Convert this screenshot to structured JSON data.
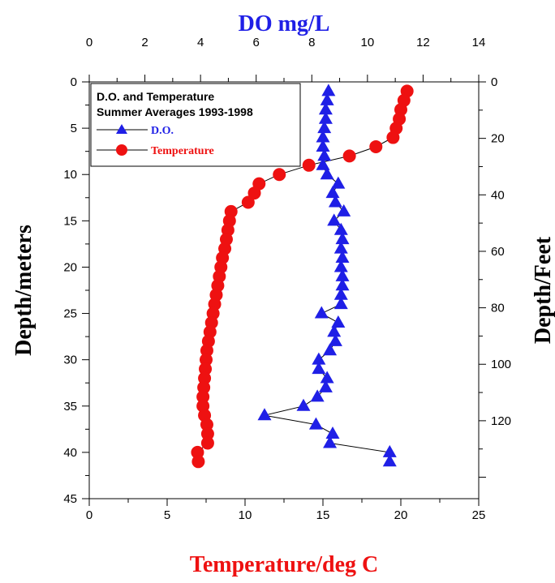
{
  "chart_data": {
    "type": "scatter",
    "title": "",
    "top_axis": {
      "label": "DO mg/L",
      "range": [
        0,
        14
      ],
      "ticks": [
        "0",
        "2",
        "4",
        "6",
        "8",
        "10",
        "12",
        "14"
      ],
      "color": "#1f1fe6"
    },
    "bottom_axis": {
      "label": "Temperature/deg C",
      "range": [
        0,
        25
      ],
      "ticks": [
        "0",
        "5",
        "10",
        "15",
        "20",
        "25"
      ],
      "color": "#ee1111"
    },
    "left_axis": {
      "label": "Depth/meters",
      "range": [
        0,
        45
      ],
      "inverted": true,
      "ticks": [
        "0",
        "5",
        "10",
        "15",
        "20",
        "25",
        "30",
        "35",
        "40",
        "45"
      ]
    },
    "right_axis": {
      "label": "Depth/Feet",
      "range": [
        0,
        147.6
      ],
      "inverted": true,
      "ticks": [
        "0",
        "20",
        "40",
        "60",
        "80",
        "100",
        "120"
      ]
    },
    "legend": {
      "placement": "top-left",
      "title_line1": "D.O. and Temperature",
      "title_line2": "Summer Averages 1993-1998",
      "do_label": "D.O.",
      "temp_label": "Temperature"
    },
    "series": [
      {
        "name": "D.O.",
        "color": "#1f1fe6",
        "marker": "triangle",
        "x_axis": "top",
        "points": [
          {
            "depth": 1,
            "value": 8.6
          },
          {
            "depth": 2,
            "value": 8.55
          },
          {
            "depth": 3,
            "value": 8.5
          },
          {
            "depth": 4,
            "value": 8.5
          },
          {
            "depth": 5,
            "value": 8.45
          },
          {
            "depth": 6,
            "value": 8.4
          },
          {
            "depth": 7,
            "value": 8.4
          },
          {
            "depth": 8,
            "value": 8.45
          },
          {
            "depth": 9,
            "value": 8.4
          },
          {
            "depth": 10,
            "value": 8.55
          },
          {
            "depth": 11,
            "value": 8.95
          },
          {
            "depth": 12,
            "value": 8.75
          },
          {
            "depth": 13,
            "value": 8.85
          },
          {
            "depth": 14,
            "value": 9.15
          },
          {
            "depth": 15,
            "value": 8.8
          },
          {
            "depth": 16,
            "value": 9.05
          },
          {
            "depth": 17,
            "value": 9.1
          },
          {
            "depth": 18,
            "value": 9.05
          },
          {
            "depth": 19,
            "value": 9.1
          },
          {
            "depth": 20,
            "value": 9.05
          },
          {
            "depth": 21,
            "value": 9.1
          },
          {
            "depth": 22,
            "value": 9.1
          },
          {
            "depth": 23,
            "value": 9.05
          },
          {
            "depth": 24,
            "value": 9.05
          },
          {
            "depth": 25,
            "value": 8.35
          },
          {
            "depth": 26,
            "value": 8.95
          },
          {
            "depth": 27,
            "value": 8.8
          },
          {
            "depth": 28,
            "value": 8.85
          },
          {
            "depth": 29,
            "value": 8.65
          },
          {
            "depth": 30,
            "value": 8.25
          },
          {
            "depth": 31,
            "value": 8.25
          },
          {
            "depth": 32,
            "value": 8.55
          },
          {
            "depth": 33,
            "value": 8.5
          },
          {
            "depth": 34,
            "value": 8.2
          },
          {
            "depth": 35,
            "value": 7.7
          },
          {
            "depth": 36,
            "value": 6.3
          },
          {
            "depth": 37,
            "value": 8.15
          },
          {
            "depth": 38,
            "value": 8.75
          },
          {
            "depth": 39,
            "value": 8.65
          },
          {
            "depth": 40,
            "value": 10.8
          },
          {
            "depth": 41,
            "value": 10.8
          }
        ]
      },
      {
        "name": "Temperature",
        "color": "#ee1111",
        "marker": "circle",
        "x_axis": "bottom",
        "points": [
          {
            "depth": 1,
            "value": 20.4
          },
          {
            "depth": 2,
            "value": 20.2
          },
          {
            "depth": 3,
            "value": 20.0
          },
          {
            "depth": 4,
            "value": 19.9
          },
          {
            "depth": 5,
            "value": 19.7
          },
          {
            "depth": 6,
            "value": 19.5
          },
          {
            "depth": 7,
            "value": 18.4
          },
          {
            "depth": 8,
            "value": 16.7
          },
          {
            "depth": 9,
            "value": 14.1
          },
          {
            "depth": 10,
            "value": 12.2
          },
          {
            "depth": 11,
            "value": 10.9
          },
          {
            "depth": 12,
            "value": 10.6
          },
          {
            "depth": 13,
            "value": 10.2
          },
          {
            "depth": 14,
            "value": 9.1
          },
          {
            "depth": 15,
            "value": 9.0
          },
          {
            "depth": 16,
            "value": 8.9
          },
          {
            "depth": 17,
            "value": 8.8
          },
          {
            "depth": 18,
            "value": 8.7
          },
          {
            "depth": 19,
            "value": 8.55
          },
          {
            "depth": 20,
            "value": 8.45
          },
          {
            "depth": 21,
            "value": 8.35
          },
          {
            "depth": 22,
            "value": 8.25
          },
          {
            "depth": 23,
            "value": 8.15
          },
          {
            "depth": 24,
            "value": 8.05
          },
          {
            "depth": 25,
            "value": 7.95
          },
          {
            "depth": 26,
            "value": 7.85
          },
          {
            "depth": 27,
            "value": 7.75
          },
          {
            "depth": 28,
            "value": 7.65
          },
          {
            "depth": 29,
            "value": 7.55
          },
          {
            "depth": 30,
            "value": 7.5
          },
          {
            "depth": 31,
            "value": 7.45
          },
          {
            "depth": 32,
            "value": 7.4
          },
          {
            "depth": 33,
            "value": 7.35
          },
          {
            "depth": 34,
            "value": 7.3
          },
          {
            "depth": 35,
            "value": 7.3
          },
          {
            "depth": 36,
            "value": 7.4
          },
          {
            "depth": 37,
            "value": 7.55
          },
          {
            "depth": 38,
            "value": 7.6
          },
          {
            "depth": 39,
            "value": 7.6
          },
          {
            "depth": 40,
            "value": 6.95
          },
          {
            "depth": 41,
            "value": 7.0
          }
        ]
      }
    ]
  }
}
